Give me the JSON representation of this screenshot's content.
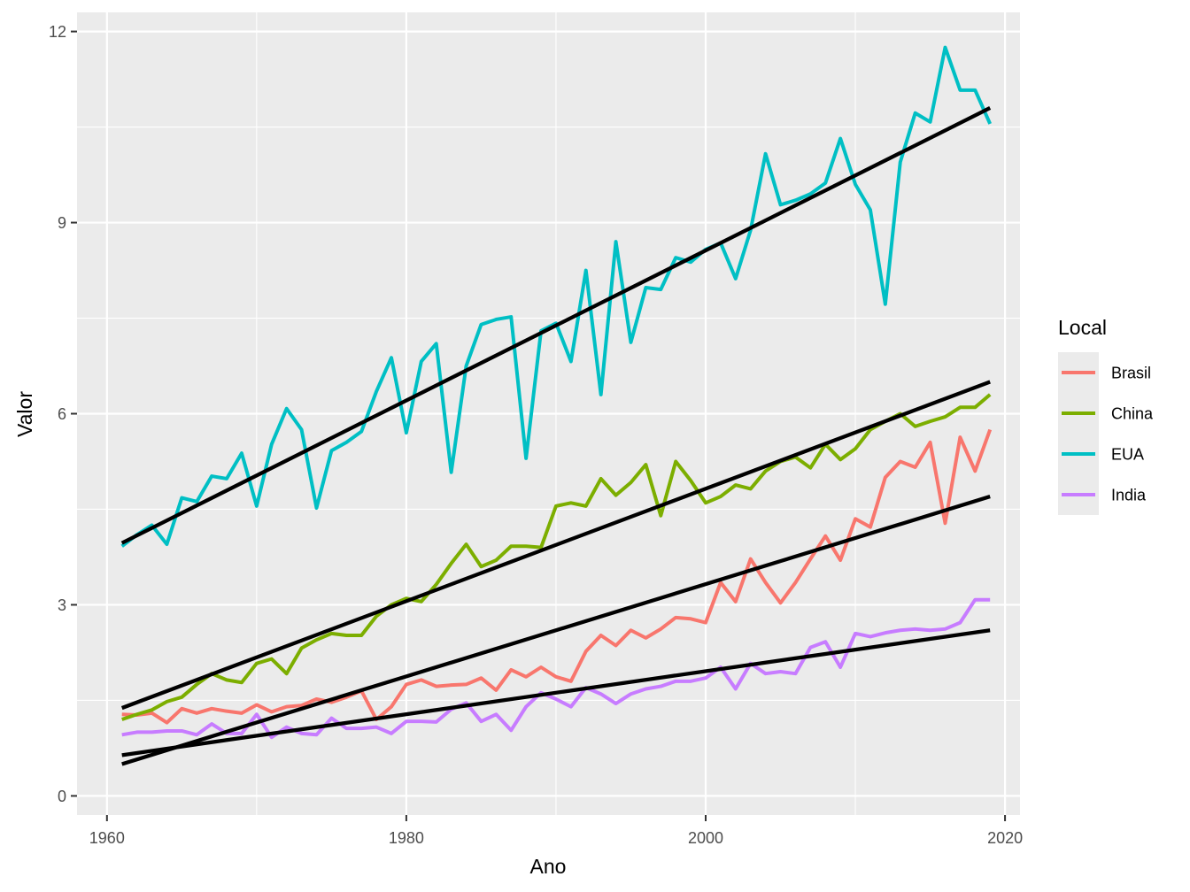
{
  "chart_data": {
    "type": "line",
    "xlabel": "Ano",
    "ylabel": "Valor",
    "xlim": [
      1958,
      2021
    ],
    "ylim": [
      -0.3,
      12.3
    ],
    "x_ticks": [
      1960,
      1980,
      2000,
      2020
    ],
    "y_ticks": [
      0,
      3,
      6,
      9,
      12
    ],
    "grid": true,
    "background": "#ebebeb",
    "legend": {
      "title": "Local",
      "placement": "right",
      "entries": [
        "Brasil",
        "China",
        "EUA",
        "India"
      ]
    },
    "x": [
      1961,
      1962,
      1963,
      1964,
      1965,
      1966,
      1967,
      1968,
      1969,
      1970,
      1971,
      1972,
      1973,
      1974,
      1975,
      1976,
      1977,
      1978,
      1979,
      1980,
      1981,
      1982,
      1983,
      1984,
      1985,
      1986,
      1987,
      1988,
      1989,
      1990,
      1991,
      1992,
      1993,
      1994,
      1995,
      1996,
      1997,
      1998,
      1999,
      2000,
      2001,
      2002,
      2003,
      2004,
      2005,
      2006,
      2007,
      2008,
      2009,
      2010,
      2011,
      2012,
      2013,
      2014,
      2015,
      2016,
      2017,
      2018,
      2019
    ],
    "series": [
      {
        "name": "Brasil",
        "color": "#f8766d",
        "values": [
          1.28,
          1.27,
          1.3,
          1.15,
          1.37,
          1.3,
          1.37,
          1.33,
          1.3,
          1.43,
          1.32,
          1.4,
          1.42,
          1.52,
          1.47,
          1.55,
          1.65,
          1.2,
          1.4,
          1.75,
          1.82,
          1.72,
          1.74,
          1.75,
          1.85,
          1.66,
          1.98,
          1.87,
          2.02,
          1.87,
          1.8,
          2.27,
          2.52,
          2.36,
          2.6,
          2.48,
          2.62,
          2.8,
          2.78,
          2.72,
          3.35,
          3.05,
          3.72,
          3.35,
          3.03,
          3.35,
          3.72,
          4.08,
          3.7,
          4.35,
          4.22,
          5.0,
          5.25,
          5.16,
          5.55,
          4.28,
          5.63,
          5.1,
          5.75
        ]
      },
      {
        "name": "China",
        "color": "#7cae00",
        "values": [
          1.2,
          1.28,
          1.35,
          1.48,
          1.55,
          1.75,
          1.92,
          1.82,
          1.78,
          2.08,
          2.15,
          1.92,
          2.32,
          2.45,
          2.55,
          2.52,
          2.52,
          2.82,
          3.0,
          3.1,
          3.05,
          3.32,
          3.65,
          3.95,
          3.6,
          3.7,
          3.92,
          3.92,
          3.9,
          4.55,
          4.6,
          4.55,
          4.98,
          4.72,
          4.92,
          5.2,
          4.4,
          5.25,
          4.95,
          4.6,
          4.7,
          4.88,
          4.82,
          5.1,
          5.25,
          5.32,
          5.15,
          5.52,
          5.28,
          5.45,
          5.75,
          5.88,
          6.0,
          5.8,
          5.88,
          5.95,
          6.1,
          6.1,
          6.3
        ]
      },
      {
        "name": "EUA",
        "color": "#00bfc4",
        "values": [
          3.92,
          4.1,
          4.25,
          3.95,
          4.68,
          4.62,
          5.02,
          4.98,
          5.38,
          4.55,
          5.52,
          6.08,
          5.75,
          4.52,
          5.42,
          5.55,
          5.72,
          6.35,
          6.88,
          5.7,
          6.82,
          7.1,
          5.08,
          6.75,
          7.4,
          7.48,
          7.52,
          5.3,
          7.3,
          7.42,
          6.82,
          8.25,
          6.3,
          8.7,
          7.12,
          7.98,
          7.95,
          8.45,
          8.38,
          8.58,
          8.68,
          8.12,
          8.88,
          10.08,
          9.28,
          9.35,
          9.45,
          9.62,
          10.32,
          9.6,
          9.2,
          7.72,
          9.95,
          10.72,
          10.58,
          11.75,
          11.08,
          11.08,
          10.55
        ]
      },
      {
        "name": "India",
        "color": "#c77cff",
        "values": [
          0.96,
          1.0,
          1.0,
          1.02,
          1.02,
          0.96,
          1.13,
          0.98,
          0.98,
          1.28,
          0.92,
          1.08,
          0.98,
          0.96,
          1.22,
          1.06,
          1.06,
          1.08,
          0.98,
          1.17,
          1.17,
          1.16,
          1.36,
          1.46,
          1.17,
          1.28,
          1.03,
          1.4,
          1.62,
          1.52,
          1.4,
          1.7,
          1.6,
          1.45,
          1.6,
          1.68,
          1.72,
          1.8,
          1.8,
          1.85,
          2.02,
          1.68,
          2.08,
          1.92,
          1.95,
          1.92,
          2.33,
          2.42,
          2.02,
          2.55,
          2.5,
          2.56,
          2.6,
          2.62,
          2.6,
          2.62,
          2.72,
          3.08,
          3.08
        ]
      }
    ],
    "trend_lines": [
      {
        "series": "Brasil",
        "color": "#000000",
        "x": [
          1961,
          2019
        ],
        "y": [
          0.5,
          4.7
        ]
      },
      {
        "series": "China",
        "color": "#000000",
        "x": [
          1961,
          2019
        ],
        "y": [
          1.38,
          6.5
        ]
      },
      {
        "series": "EUA",
        "color": "#000000",
        "x": [
          1961,
          2019
        ],
        "y": [
          3.97,
          10.8
        ]
      },
      {
        "series": "India",
        "color": "#000000",
        "x": [
          1961,
          2019
        ],
        "y": [
          0.64,
          2.6
        ]
      }
    ]
  }
}
